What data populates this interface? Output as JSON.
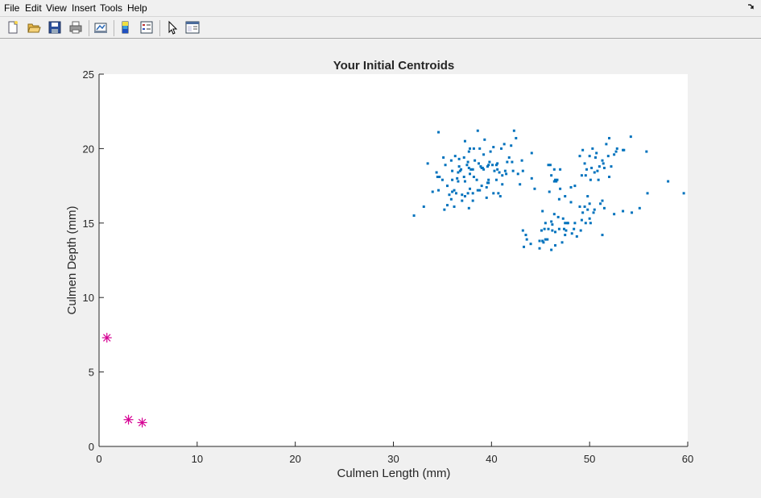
{
  "window": {
    "menu": [
      "File",
      "Edit",
      "View",
      "Insert",
      "Tools",
      "Help"
    ]
  },
  "toolbar": {
    "icons": [
      "new-figure-icon",
      "open-file-icon",
      "save-icon",
      "print-icon",
      "link-plot-icon",
      "colorbar-icon",
      "legend-icon",
      "pointer-icon",
      "property-editor-icon"
    ]
  },
  "chart_data": {
    "type": "scatter",
    "title": "Your Initial Centroids",
    "xlabel": "Culmen Length (mm)",
    "ylabel": "Culmen Depth (mm)",
    "xlim": [
      0,
      60
    ],
    "ylim": [
      0,
      25
    ],
    "xticks": [
      0,
      10,
      20,
      30,
      40,
      50,
      60
    ],
    "yticks": [
      0,
      5,
      10,
      15,
      20,
      25
    ],
    "grid": false,
    "series": [
      {
        "marker": "dot",
        "color": "#0072bd",
        "points": [
          [
            32.1,
            15.5
          ],
          [
            33.1,
            16.1
          ],
          [
            33.5,
            19.0
          ],
          [
            34.0,
            17.1
          ],
          [
            34.4,
            18.4
          ],
          [
            34.5,
            18.1
          ],
          [
            34.6,
            21.1
          ],
          [
            34.6,
            17.2
          ],
          [
            34.7,
            18.1
          ],
          [
            35.0,
            17.9
          ],
          [
            35.1,
            19.4
          ],
          [
            35.2,
            15.9
          ],
          [
            35.3,
            18.9
          ],
          [
            35.5,
            17.5
          ],
          [
            35.5,
            16.2
          ],
          [
            35.7,
            16.9
          ],
          [
            35.9,
            19.2
          ],
          [
            35.9,
            16.6
          ],
          [
            36.0,
            18.5
          ],
          [
            36.0,
            17.9
          ],
          [
            36.0,
            17.1
          ],
          [
            36.2,
            17.2
          ],
          [
            36.2,
            16.1
          ],
          [
            36.3,
            19.5
          ],
          [
            36.4,
            17.0
          ],
          [
            36.5,
            18.0
          ],
          [
            36.6,
            18.4
          ],
          [
            36.6,
            17.8
          ],
          [
            36.7,
            18.8
          ],
          [
            36.7,
            19.3
          ],
          [
            36.8,
            18.5
          ],
          [
            36.9,
            18.6
          ],
          [
            37.0,
            16.9
          ],
          [
            37.0,
            16.5
          ],
          [
            37.2,
            18.1
          ],
          [
            37.2,
            19.4
          ],
          [
            37.3,
            20.5
          ],
          [
            37.3,
            17.8
          ],
          [
            37.3,
            16.8
          ],
          [
            37.5,
            18.9
          ],
          [
            37.6,
            19.1
          ],
          [
            37.6,
            17.0
          ],
          [
            37.7,
            18.7
          ],
          [
            37.7,
            19.8
          ],
          [
            37.7,
            16.0
          ],
          [
            37.8,
            18.3
          ],
          [
            37.8,
            20.0
          ],
          [
            37.8,
            17.3
          ],
          [
            37.9,
            18.6
          ],
          [
            38.1,
            18.6
          ],
          [
            38.1,
            17.0
          ],
          [
            38.1,
            16.5
          ],
          [
            38.2,
            18.1
          ],
          [
            38.2,
            20.0
          ],
          [
            38.3,
            19.2
          ],
          [
            38.5,
            17.9
          ],
          [
            38.6,
            21.2
          ],
          [
            38.6,
            17.2
          ],
          [
            38.7,
            19.0
          ],
          [
            38.8,
            17.2
          ],
          [
            38.8,
            20.0
          ],
          [
            38.9,
            18.8
          ],
          [
            39.0,
            17.5
          ],
          [
            39.0,
            18.7
          ],
          [
            39.1,
            18.7
          ],
          [
            39.2,
            19.6
          ],
          [
            39.2,
            18.6
          ],
          [
            39.3,
            20.6
          ],
          [
            39.5,
            17.4
          ],
          [
            39.5,
            16.7
          ],
          [
            39.6,
            17.7
          ],
          [
            39.6,
            18.8
          ],
          [
            39.7,
            17.7
          ],
          [
            39.7,
            18.9
          ],
          [
            39.7,
            17.9
          ],
          [
            39.8,
            19.1
          ],
          [
            39.9,
            19.8
          ],
          [
            40.1,
            18.9
          ],
          [
            40.2,
            17.0
          ],
          [
            40.2,
            20.1
          ],
          [
            40.3,
            18.5
          ],
          [
            40.5,
            17.9
          ],
          [
            40.5,
            18.9
          ],
          [
            40.6,
            18.6
          ],
          [
            40.6,
            19.0
          ],
          [
            40.7,
            17.0
          ],
          [
            40.8,
            18.4
          ],
          [
            40.9,
            16.8
          ],
          [
            41.0,
            20.0
          ],
          [
            41.1,
            17.6
          ],
          [
            41.1,
            18.2
          ],
          [
            41.3,
            20.3
          ],
          [
            41.4,
            18.5
          ],
          [
            41.5,
            18.3
          ],
          [
            41.6,
            19.1
          ],
          [
            41.8,
            19.4
          ],
          [
            42.0,
            20.2
          ],
          [
            42.1,
            19.1
          ],
          [
            42.2,
            18.5
          ],
          [
            42.3,
            21.2
          ],
          [
            42.5,
            20.7
          ],
          [
            42.7,
            18.3
          ],
          [
            42.9,
            17.6
          ],
          [
            43.1,
            19.2
          ],
          [
            43.2,
            18.5
          ],
          [
            44.1,
            19.7
          ],
          [
            44.1,
            18.0
          ],
          [
            44.0,
            13.6
          ],
          [
            43.2,
            14.5
          ],
          [
            43.3,
            13.4
          ],
          [
            43.5,
            14.2
          ],
          [
            43.6,
            13.9
          ],
          [
            44.4,
            17.3
          ],
          [
            44.9,
            13.8
          ],
          [
            44.9,
            13.3
          ],
          [
            45.1,
            14.5
          ],
          [
            45.2,
            13.8
          ],
          [
            45.2,
            15.8
          ],
          [
            45.3,
            13.7
          ],
          [
            45.4,
            14.6
          ],
          [
            45.5,
            15.0
          ],
          [
            45.5,
            13.9
          ],
          [
            45.7,
            13.9
          ],
          [
            45.8,
            14.6
          ],
          [
            45.9,
            17.1
          ],
          [
            46.1,
            13.2
          ],
          [
            46.1,
            15.1
          ],
          [
            46.2,
            14.5
          ],
          [
            46.2,
            14.9
          ],
          [
            46.4,
            15.6
          ],
          [
            46.5,
            13.5
          ],
          [
            46.5,
            14.4
          ],
          [
            46.6,
            17.8
          ],
          [
            46.8,
            15.4
          ],
          [
            46.9,
            14.6
          ],
          [
            47.0,
            17.3
          ],
          [
            47.2,
            13.7
          ],
          [
            47.3,
            15.3
          ],
          [
            47.4,
            14.6
          ],
          [
            47.5,
            14.2
          ],
          [
            47.5,
            15.0
          ],
          [
            47.6,
            14.5
          ],
          [
            47.7,
            15.0
          ],
          [
            47.8,
            15.0
          ],
          [
            48.1,
            16.4
          ],
          [
            48.2,
            14.3
          ],
          [
            48.4,
            14.6
          ],
          [
            48.5,
            15.0
          ],
          [
            48.7,
            14.1
          ],
          [
            49.0,
            16.1
          ],
          [
            49.1,
            14.5
          ],
          [
            49.2,
            15.2
          ],
          [
            49.3,
            15.7
          ],
          [
            49.5,
            16.1
          ],
          [
            49.6,
            15.0
          ],
          [
            49.8,
            15.9
          ],
          [
            50.0,
            15.3
          ],
          [
            50.1,
            15.0
          ],
          [
            50.4,
            15.7
          ],
          [
            50.5,
            15.9
          ],
          [
            51.1,
            16.3
          ],
          [
            51.3,
            14.2
          ],
          [
            45.8,
            18.9
          ],
          [
            46.0,
            18.9
          ],
          [
            46.1,
            18.2
          ],
          [
            46.4,
            17.8
          ],
          [
            46.4,
            18.6
          ],
          [
            46.5,
            17.9
          ],
          [
            46.7,
            17.9
          ],
          [
            46.9,
            16.6
          ],
          [
            47.0,
            18.6
          ],
          [
            47.5,
            16.8
          ],
          [
            48.1,
            17.4
          ],
          [
            48.5,
            17.5
          ],
          [
            49.0,
            19.5
          ],
          [
            49.2,
            18.2
          ],
          [
            49.3,
            19.9
          ],
          [
            49.5,
            19.0
          ],
          [
            49.6,
            18.2
          ],
          [
            49.7,
            18.6
          ],
          [
            50.0,
            19.5
          ],
          [
            50.1,
            17.9
          ],
          [
            50.2,
            18.7
          ],
          [
            50.3,
            20.0
          ],
          [
            50.5,
            18.4
          ],
          [
            50.6,
            19.4
          ],
          [
            50.7,
            19.7
          ],
          [
            50.8,
            18.5
          ],
          [
            50.9,
            17.9
          ],
          [
            51.0,
            18.8
          ],
          [
            51.3,
            19.2
          ],
          [
            51.4,
            19.0
          ],
          [
            51.5,
            18.7
          ],
          [
            51.7,
            20.3
          ],
          [
            51.9,
            19.5
          ],
          [
            52.0,
            18.1
          ],
          [
            52.0,
            20.7
          ],
          [
            52.2,
            18.8
          ],
          [
            52.5,
            19.6
          ],
          [
            52.7,
            19.8
          ],
          [
            52.8,
            20.0
          ],
          [
            53.4,
            19.9
          ],
          [
            53.5,
            19.9
          ],
          [
            54.2,
            20.8
          ],
          [
            55.8,
            19.8
          ],
          [
            55.9,
            17.0
          ],
          [
            58.0,
            17.8
          ],
          [
            59.6,
            17.0
          ],
          [
            54.3,
            15.7
          ],
          [
            55.1,
            16.0
          ],
          [
            52.5,
            15.6
          ],
          [
            53.4,
            15.8
          ],
          [
            49.8,
            16.8
          ],
          [
            50.0,
            16.3
          ],
          [
            51.3,
            16.5
          ],
          [
            51.5,
            16.0
          ]
        ]
      },
      {
        "marker": "asterisk",
        "color": "#d60093",
        "points": [
          [
            0.8,
            7.3
          ],
          [
            3.0,
            1.8
          ],
          [
            4.4,
            1.6
          ]
        ]
      }
    ]
  }
}
